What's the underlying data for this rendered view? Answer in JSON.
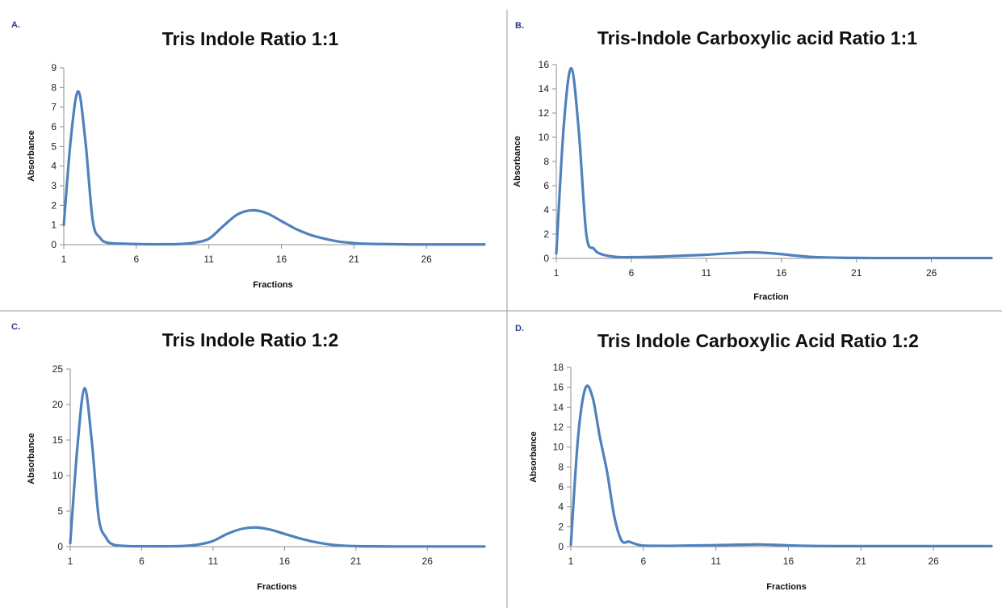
{
  "figure": {
    "line_color": "#4f81bd",
    "divider_color": "#9a9a9a"
  },
  "chart_data": [
    {
      "panel_label": "A.",
      "type": "line",
      "title": "Tris Indole Ratio 1:1",
      "xlabel": "Fractions",
      "ylabel": "Absorbance",
      "xlim": [
        1,
        30
      ],
      "ylim": [
        0,
        9
      ],
      "xticks": [
        "1",
        "6",
        "11",
        "16",
        "21",
        "26"
      ],
      "yticks": [
        "0",
        "1",
        "2",
        "3",
        "4",
        "5",
        "6",
        "7",
        "8",
        "9"
      ],
      "grid": false,
      "legend": "none",
      "series": [
        {
          "x": [
            1,
            1.5,
            2,
            2.5,
            3,
            3.5,
            4,
            5,
            6,
            7,
            8,
            9,
            10,
            11,
            12,
            13,
            14,
            15,
            16,
            17,
            18,
            19,
            20,
            21,
            22,
            23,
            24,
            25,
            26,
            27,
            28,
            29,
            30
          ],
          "values": [
            1.0,
            5.5,
            7.8,
            5.2,
            1.2,
            0.35,
            0.1,
            0.05,
            0.03,
            0.02,
            0.02,
            0.03,
            0.1,
            0.3,
            0.95,
            1.55,
            1.75,
            1.6,
            1.2,
            0.8,
            0.5,
            0.3,
            0.15,
            0.08,
            0.04,
            0.03,
            0.02,
            0.01,
            0.01,
            0.01,
            0.01,
            0.01,
            0.01
          ]
        }
      ]
    },
    {
      "panel_label": "B.",
      "type": "line",
      "title": "Tris-Indole Carboxylic acid Ratio 1:1",
      "xlabel": "Fraction",
      "ylabel": "Absorbance",
      "xlim": [
        1,
        30
      ],
      "ylim": [
        0,
        16
      ],
      "xticks": [
        "1",
        "6",
        "11",
        "16",
        "21",
        "26"
      ],
      "yticks": [
        "0",
        "2",
        "4",
        "6",
        "8",
        "10",
        "12",
        "14",
        "16"
      ],
      "grid": false,
      "legend": "none",
      "series": [
        {
          "x": [
            1,
            1.5,
            2,
            2.5,
            3,
            3.5,
            4,
            5,
            6,
            7,
            8,
            9,
            10,
            11,
            12,
            13,
            14,
            15,
            16,
            17,
            18,
            19,
            20,
            21,
            22,
            23,
            24,
            25,
            26,
            27,
            28,
            29,
            30
          ],
          "values": [
            0.4,
            11.0,
            15.7,
            10.5,
            2.0,
            0.8,
            0.35,
            0.12,
            0.1,
            0.12,
            0.15,
            0.2,
            0.25,
            0.3,
            0.38,
            0.45,
            0.5,
            0.45,
            0.35,
            0.22,
            0.12,
            0.08,
            0.05,
            0.04,
            0.03,
            0.03,
            0.03,
            0.03,
            0.03,
            0.03,
            0.03,
            0.03,
            0.03
          ]
        }
      ]
    },
    {
      "panel_label": "C.",
      "type": "line",
      "title": "Tris Indole Ratio 1:2",
      "xlabel": "Fractions",
      "ylabel": "Absorbance",
      "xlim": [
        1,
        30
      ],
      "ylim": [
        0,
        25
      ],
      "xticks": [
        "1",
        "6",
        "11",
        "16",
        "21",
        "26"
      ],
      "yticks": [
        "0",
        "5",
        "10",
        "15",
        "20",
        "25"
      ],
      "grid": false,
      "legend": "none",
      "series": [
        {
          "x": [
            1,
            1.5,
            2,
            2.5,
            3,
            3.5,
            4,
            5,
            6,
            7,
            8,
            9,
            10,
            11,
            12,
            13,
            14,
            15,
            16,
            17,
            18,
            19,
            20,
            21,
            22,
            23,
            24,
            25,
            26,
            27,
            28,
            29,
            30
          ],
          "values": [
            0.5,
            14.0,
            22.3,
            15.0,
            4.0,
            1.3,
            0.3,
            0.08,
            0.05,
            0.04,
            0.05,
            0.1,
            0.3,
            0.8,
            1.8,
            2.5,
            2.7,
            2.4,
            1.8,
            1.2,
            0.7,
            0.35,
            0.15,
            0.07,
            0.04,
            0.03,
            0.02,
            0.02,
            0.02,
            0.02,
            0.02,
            0.02,
            0.02
          ]
        }
      ]
    },
    {
      "panel_label": "D.",
      "type": "line",
      "title": "Tris Indole Carboxylic Acid Ratio 1:2",
      "xlabel": "Fractions",
      "ylabel": "Absorbance",
      "xlim": [
        1,
        30
      ],
      "ylim": [
        0,
        18
      ],
      "xticks": [
        "1",
        "6",
        "11",
        "16",
        "21",
        "26"
      ],
      "yticks": [
        "0",
        "2",
        "4",
        "6",
        "8",
        "10",
        "12",
        "14",
        "16",
        "18"
      ],
      "grid": false,
      "legend": "none",
      "series": [
        {
          "x": [
            1,
            1.5,
            2,
            2.5,
            3,
            3.5,
            4,
            4.5,
            5,
            5.5,
            6,
            7,
            8,
            9,
            10,
            11,
            12,
            13,
            14,
            15,
            16,
            17,
            18,
            19,
            20,
            21,
            22,
            23,
            24,
            25,
            26,
            27,
            28,
            29,
            30
          ],
          "values": [
            0.2,
            11.0,
            15.9,
            15.0,
            11.0,
            7.5,
            3.0,
            0.6,
            0.5,
            0.25,
            0.1,
            0.08,
            0.08,
            0.1,
            0.12,
            0.15,
            0.18,
            0.2,
            0.22,
            0.18,
            0.12,
            0.08,
            0.06,
            0.05,
            0.05,
            0.05,
            0.05,
            0.05,
            0.05,
            0.05,
            0.05,
            0.05,
            0.05,
            0.05,
            0.05
          ]
        }
      ]
    }
  ]
}
